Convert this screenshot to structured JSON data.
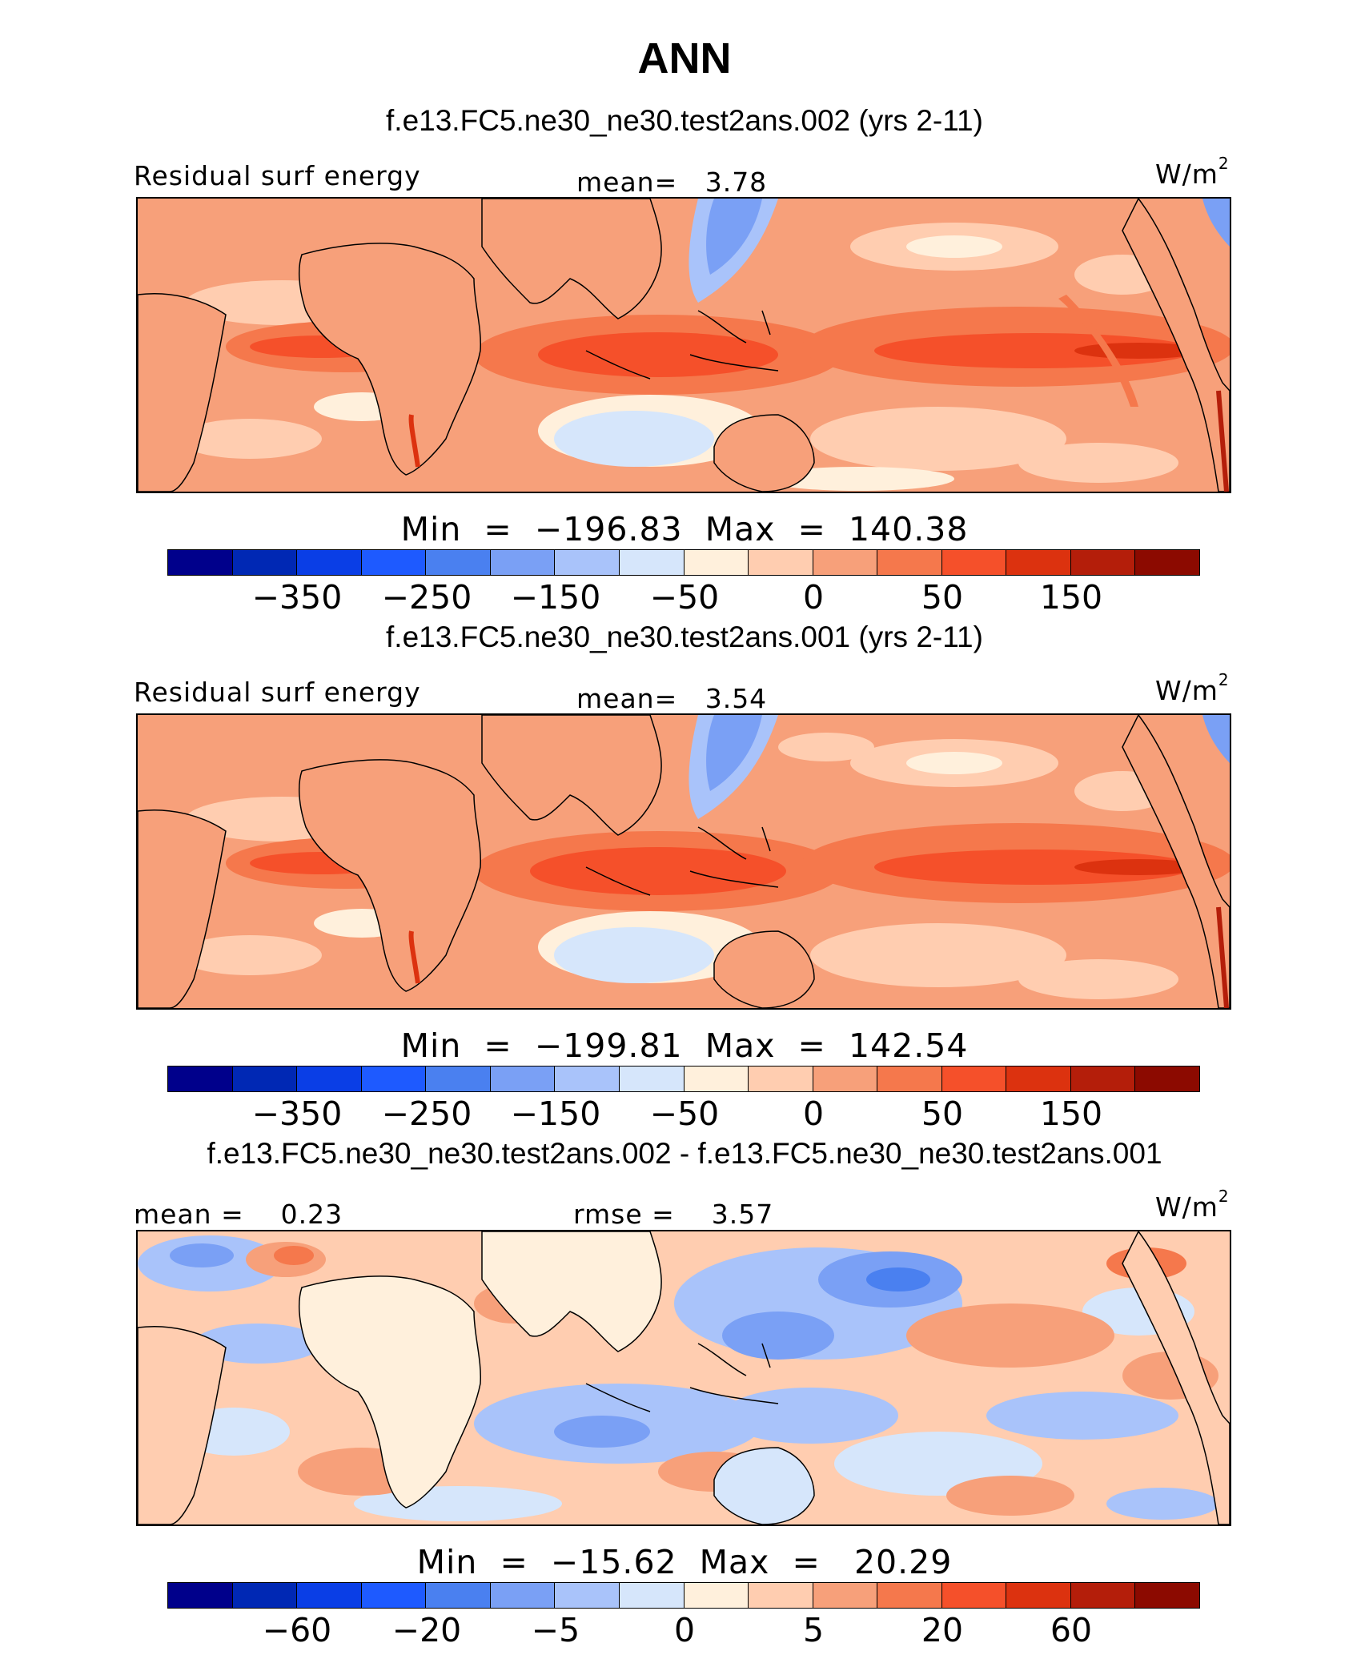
{
  "title": "ANN",
  "palette": [
    "#00008b",
    "#0028b4",
    "#0a3ee6",
    "#1e5aff",
    "#4a80f0",
    "#7aa0f5",
    "#a9c3fa",
    "#d6e6fb",
    "#fff0dc",
    "#ffcdb0",
    "#f7a07a",
    "#f5784c",
    "#f5502a",
    "#dc320f",
    "#b41e0a",
    "#8c0a00"
  ],
  "land_color": "#f7a07a",
  "panels": [
    {
      "case_title": "f.e13.FC5.ne30_ne30.test2ans.002 (yrs 2-11)",
      "left_label": "Residual surf energy",
      "center_label": "mean=   3.78",
      "units": "W/m",
      "units_sup": "2",
      "minmax": "Min  =  −196.83  Max  =  140.38",
      "ticks": [
        "−350",
        "−250",
        "−150",
        "−50",
        "0",
        "50",
        "150"
      ],
      "kind": "field"
    },
    {
      "case_title": "f.e13.FC5.ne30_ne30.test2ans.001 (yrs 2-11)",
      "left_label": "Residual surf energy",
      "center_label": "mean=   3.54",
      "units": "W/m",
      "units_sup": "2",
      "minmax": "Min  =  −199.81  Max  =  142.54",
      "ticks": [
        "−350",
        "−250",
        "−150",
        "−50",
        "0",
        "50",
        "150"
      ],
      "kind": "field"
    },
    {
      "case_title": "f.e13.FC5.ne30_ne30.test2ans.002 - f.e13.FC5.ne30_ne30.test2ans.001",
      "left_label": "mean =    0.23",
      "center_label": "rmse =    3.57",
      "units": "W/m",
      "units_sup": "2",
      "minmax": "Min  =  −15.62  Max  =   20.29",
      "ticks": [
        "−60",
        "−20",
        "−5",
        "0",
        "5",
        "20",
        "60"
      ],
      "kind": "difference"
    }
  ]
}
